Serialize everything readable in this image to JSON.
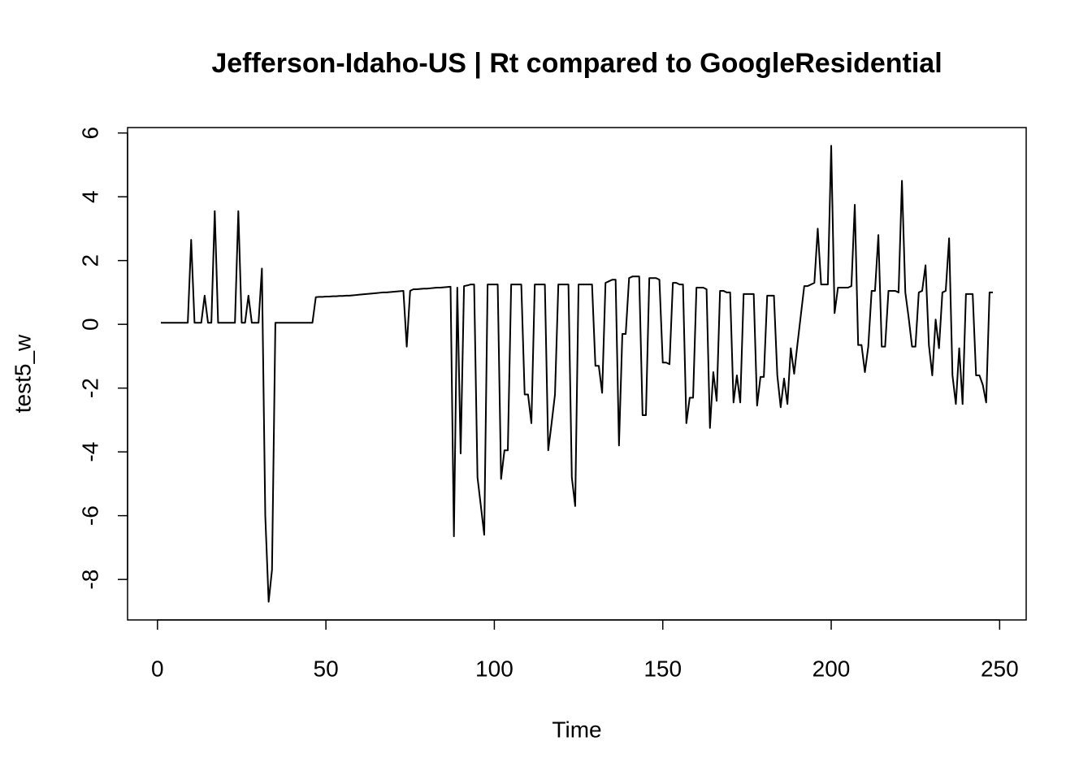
{
  "chart_data": {
    "type": "line",
    "title": "Jefferson-Idaho-US | Rt compared to GoogleResidential",
    "x_label": "Time",
    "y_label": "test5_w",
    "xlim": [
      -8.88,
      257.88
    ],
    "ylim": [
      -9.27,
      6.17
    ],
    "xticks": [
      0,
      50,
      100,
      150,
      200,
      250
    ],
    "yticks": [
      -8,
      -6,
      -4,
      -2,
      0,
      2,
      4,
      6
    ],
    "series": [
      {
        "color": "#000000",
        "x": [
          1,
          2,
          3,
          4,
          5,
          6,
          7,
          8,
          9,
          10,
          11,
          12,
          13,
          14,
          15,
          16,
          17,
          18,
          19,
          20,
          21,
          22,
          23,
          24,
          25,
          26,
          27,
          28,
          29,
          30,
          31,
          32,
          33,
          34,
          35,
          36,
          37,
          38,
          39,
          40,
          41,
          42,
          43,
          44,
          45,
          46,
          47,
          48,
          49,
          50,
          51,
          52,
          53,
          54,
          55,
          56,
          57,
          58,
          59,
          60,
          61,
          62,
          63,
          64,
          65,
          66,
          67,
          68,
          69,
          70,
          71,
          72,
          73,
          74,
          75,
          76,
          77,
          78,
          79,
          80,
          81,
          82,
          83,
          84,
          85,
          86,
          87,
          88,
          89,
          90,
          91,
          92,
          93,
          94,
          95,
          96,
          97,
          98,
          99,
          100,
          101,
          102,
          103,
          104,
          105,
          106,
          107,
          108,
          109,
          110,
          111,
          112,
          113,
          114,
          115,
          116,
          117,
          118,
          119,
          120,
          121,
          122,
          123,
          124,
          125,
          126,
          127,
          128,
          129,
          130,
          131,
          132,
          133,
          134,
          135,
          136,
          137,
          138,
          139,
          140,
          141,
          142,
          143,
          144,
          145,
          146,
          147,
          148,
          149,
          150,
          151,
          152,
          153,
          154,
          155,
          156,
          157,
          158,
          159,
          160,
          161,
          162,
          163,
          164,
          165,
          166,
          167,
          168,
          169,
          170,
          171,
          172,
          173,
          174,
          175,
          176,
          177,
          178,
          179,
          180,
          181,
          182,
          183,
          184,
          185,
          186,
          187,
          188,
          189,
          190,
          191,
          192,
          193,
          194,
          195,
          196,
          197,
          198,
          199,
          200,
          201,
          202,
          203,
          204,
          205,
          206,
          207,
          208,
          209,
          210,
          211,
          212,
          213,
          214,
          215,
          216,
          217,
          218,
          219,
          220,
          221,
          222,
          223,
          224,
          225,
          226,
          227,
          228,
          229,
          230,
          231,
          232,
          233,
          234,
          235,
          236,
          237,
          238,
          239,
          240,
          241,
          242,
          243,
          244,
          245,
          246,
          247,
          248
        ],
        "values": [
          0.05,
          0.05,
          0.05,
          0.05,
          0.05,
          0.05,
          0.05,
          0.05,
          0.05,
          2.65,
          0.05,
          0.05,
          0.05,
          0.9,
          0.05,
          0.05,
          3.55,
          0.05,
          0.05,
          0.05,
          0.05,
          0.05,
          0.05,
          3.55,
          0.05,
          0.05,
          0.9,
          0.05,
          0.05,
          0.05,
          1.75,
          -6.0,
          -8.7,
          -7.7,
          0.05,
          0.05,
          0.05,
          0.05,
          0.05,
          0.05,
          0.05,
          0.05,
          0.05,
          0.05,
          0.05,
          0.05,
          0.85,
          0.86,
          0.86,
          0.87,
          0.87,
          0.88,
          0.88,
          0.89,
          0.89,
          0.9,
          0.9,
          0.91,
          0.92,
          0.93,
          0.94,
          0.95,
          0.96,
          0.97,
          0.98,
          0.99,
          1.0,
          1.0,
          1.01,
          1.02,
          1.03,
          1.04,
          1.05,
          -0.7,
          1.05,
          1.1,
          1.1,
          1.11,
          1.12,
          1.12,
          1.13,
          1.14,
          1.15,
          1.15,
          1.16,
          1.17,
          1.18,
          -6.65,
          1.15,
          -4.05,
          1.2,
          1.22,
          1.25,
          1.25,
          -4.8,
          -5.7,
          -6.6,
          1.25,
          1.25,
          1.25,
          1.25,
          -4.85,
          -3.95,
          -3.95,
          1.25,
          1.25,
          1.25,
          1.25,
          -2.2,
          -2.2,
          -3.1,
          1.25,
          1.25,
          1.25,
          1.25,
          -3.95,
          -3.1,
          -2.2,
          1.25,
          1.25,
          1.25,
          1.25,
          -4.8,
          -5.7,
          1.25,
          1.25,
          1.25,
          1.25,
          1.25,
          -1.3,
          -1.3,
          -2.15,
          1.3,
          1.35,
          1.4,
          1.4,
          -3.8,
          -0.3,
          -0.3,
          1.45,
          1.5,
          1.5,
          1.5,
          -2.85,
          -2.85,
          1.45,
          1.45,
          1.45,
          1.4,
          -1.2,
          -1.2,
          -1.25,
          1.3,
          1.3,
          1.25,
          1.25,
          -3.1,
          -2.3,
          -2.3,
          1.15,
          1.15,
          1.15,
          1.1,
          -3.25,
          -1.5,
          -2.4,
          1.05,
          1.05,
          1.0,
          1.0,
          -2.45,
          -1.6,
          -2.45,
          0.95,
          0.95,
          0.95,
          0.95,
          -2.55,
          -1.65,
          -1.65,
          0.9,
          0.9,
          0.9,
          -1.6,
          -2.6,
          -1.7,
          -2.5,
          -0.75,
          -1.55,
          -0.6,
          0.3,
          1.2,
          1.2,
          1.25,
          1.3,
          3.0,
          1.25,
          1.25,
          1.25,
          5.6,
          0.35,
          1.15,
          1.15,
          1.15,
          1.15,
          1.2,
          3.75,
          -0.65,
          -0.65,
          -1.5,
          -0.7,
          1.05,
          1.05,
          2.8,
          -0.7,
          -0.7,
          1.05,
          1.05,
          1.05,
          1.0,
          4.5,
          1.0,
          0.2,
          -0.7,
          -0.7,
          1.0,
          1.05,
          1.85,
          -0.65,
          -1.6,
          0.15,
          -0.75,
          1.0,
          1.05,
          2.7,
          -1.6,
          -2.5,
          -0.75,
          -2.5,
          0.95,
          0.95,
          0.95,
          -1.6,
          -1.6,
          -1.9,
          -2.45,
          1.0,
          1.0
        ]
      }
    ]
  }
}
